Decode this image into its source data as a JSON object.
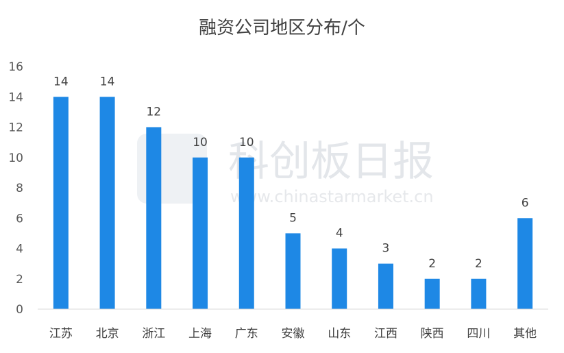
{
  "chart_data": {
    "type": "bar",
    "title": "融资公司地区分布/个",
    "categories": [
      "江苏",
      "北京",
      "浙江",
      "上海",
      "广东",
      "安徽",
      "山东",
      "江西",
      "陕西",
      "四川",
      "其他"
    ],
    "values": [
      14,
      14,
      12,
      10,
      10,
      5,
      4,
      3,
      2,
      2,
      6
    ],
    "ylim": [
      0,
      16
    ],
    "yticks": [
      "0",
      "2",
      "4",
      "6",
      "8",
      "10",
      "12",
      "14",
      "16"
    ],
    "bar_color": "#1e88e5",
    "grid": false,
    "legend": "none"
  },
  "watermark": {
    "brand_text": "科创板日报",
    "url_text": "www.chinastarmarket.cn"
  }
}
